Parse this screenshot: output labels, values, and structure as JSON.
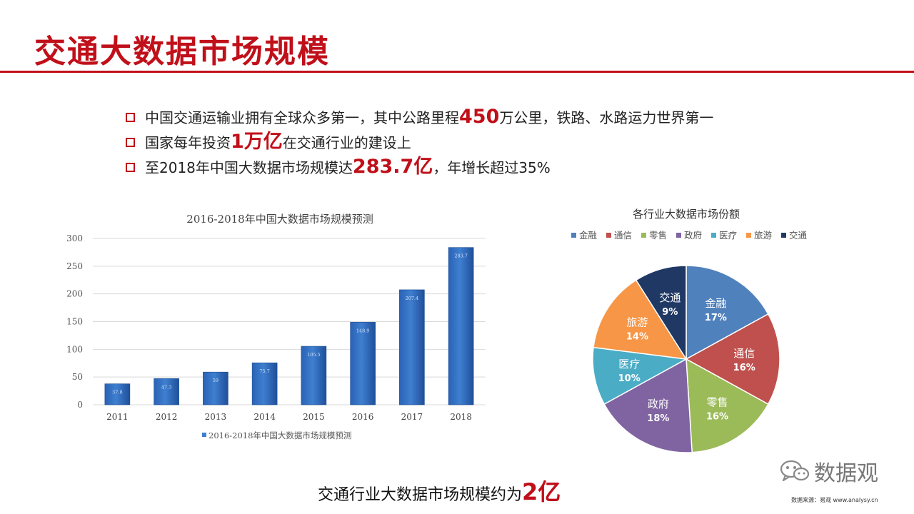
{
  "page": {
    "title": "交通大数据市场规模",
    "bullets": [
      {
        "pre": "中国交通运输业拥有全球众多第一，其中公路里程",
        "hl": "450",
        "post": "万公里，铁路、水路运力世界第一"
      },
      {
        "pre": "国家每年投资",
        "hl": "1万亿",
        "post": "在交通行业的建设上"
      },
      {
        "pre": "至2018年中国大数据市场规模达",
        "hl": "283.7亿",
        "post": "，年增长超过35%"
      }
    ],
    "footer": {
      "pre": "交通行业大数据市场规模约为",
      "hl": "2亿"
    },
    "wechat_name": "数据观",
    "source": "数据来源：易观 www.analysy.cn"
  },
  "colors": {
    "accent": "#c0101a",
    "bar": "#3f7fd0",
    "pie": [
      "#4f81bd",
      "#c0504d",
      "#9bbb59",
      "#8064a2",
      "#4bacc6",
      "#f79646",
      "#1f3864"
    ]
  },
  "chart_data": [
    {
      "type": "bar",
      "title": "2016-2018年中国大数据市场规模预测",
      "categories": [
        "2011",
        "2012",
        "2013",
        "2014",
        "2015",
        "2016",
        "2017",
        "2018"
      ],
      "series": [
        {
          "name": "2016-2018年中国大数据市场规模预测",
          "values": [
            37.8,
            47.3,
            59,
            75.7,
            105.5,
            148.9,
            207.4,
            283.7
          ]
        }
      ],
      "data_labels": [
        "37.8",
        "47.3",
        "59",
        "75.7",
        "105.5",
        "148.9",
        "207.4",
        "283.7"
      ],
      "yticks": [
        0,
        50,
        100,
        150,
        200,
        250,
        300
      ],
      "ylim": [
        0,
        300
      ],
      "grid": true,
      "legend": "bottom"
    },
    {
      "type": "pie",
      "title": "各行业大数据市场份额",
      "slices": [
        {
          "label": "金融",
          "value": 17,
          "text": "17%"
        },
        {
          "label": "通信",
          "value": 16,
          "text": "16%"
        },
        {
          "label": "零售",
          "value": 16,
          "text": "16%"
        },
        {
          "label": "政府",
          "value": 18,
          "text": "18%"
        },
        {
          "label": "医疗",
          "value": 10,
          "text": "10%"
        },
        {
          "label": "旅游",
          "value": 14,
          "text": "14%"
        },
        {
          "label": "交通",
          "value": 9,
          "text": "9%"
        }
      ],
      "legend": "top"
    }
  ]
}
